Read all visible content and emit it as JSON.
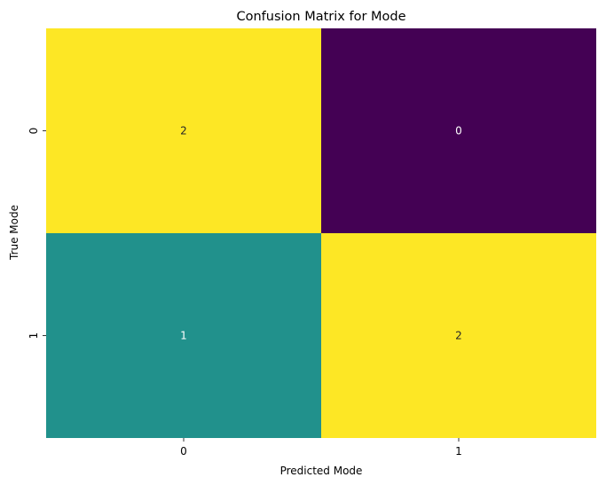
{
  "chart_data": {
    "type": "heatmap",
    "title": "Confusion Matrix for Mode",
    "xlabel": "Predicted Mode",
    "ylabel": "True Mode",
    "x_categories": [
      "0",
      "1"
    ],
    "y_categories": [
      "0",
      "1"
    ],
    "values": [
      [
        2,
        0
      ],
      [
        1,
        2
      ]
    ],
    "value_range": [
      0,
      2
    ],
    "colormap": "viridis",
    "colors": {
      "low": "#440154",
      "mid": "#21918c",
      "high": "#fde725"
    },
    "annotation_colors": {
      "on_light": "#262626",
      "on_dark": "#ffffff"
    },
    "colorbar": false,
    "grid": false
  }
}
